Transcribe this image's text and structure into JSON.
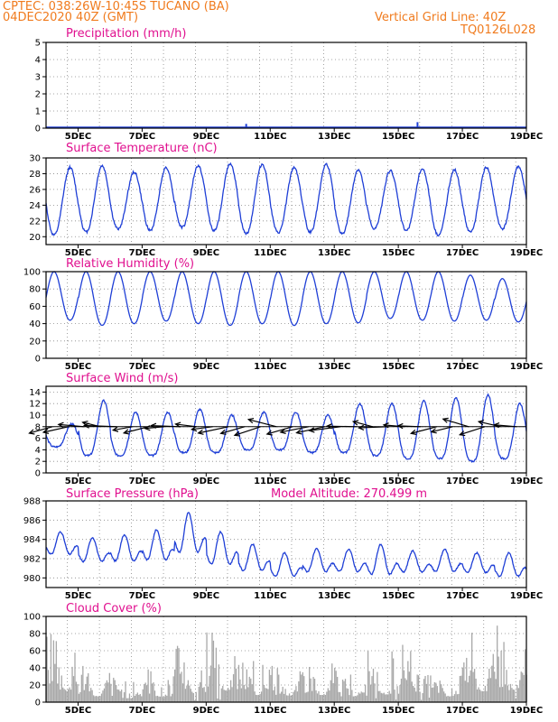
{
  "header": {
    "line1": "CPTEC:   038:26W-10:45S   TUCANO (BA)",
    "line2": "04DEC2020 40Z (GMT)",
    "right1": "Vertical Grid Line: 40Z",
    "right2": "TQ0126L028"
  },
  "colors": {
    "header": "#f07b1e",
    "title": "#e0108f",
    "series": "#1f3fd6",
    "cloud": "#a8a8a8",
    "wind": "#000000"
  },
  "chart_data": [
    {
      "type": "line",
      "title": "Precipitation (mm/h)",
      "ylim": [
        0,
        5
      ],
      "yticks": [
        "0",
        "1",
        "2",
        "3",
        "4",
        "5"
      ],
      "xticks": [
        "5DEC",
        "7DEC",
        "9DEC",
        "11DEC",
        "13DEC",
        "15DEC",
        "17DEC",
        "19DEC"
      ],
      "xrange_days": [
        4.0,
        19.0
      ],
      "spikes": [
        [
          10.25,
          0.25
        ],
        [
          15.6,
          0.35
        ],
        [
          16.9,
          0.05
        ],
        [
          17.7,
          0.08
        ]
      ]
    },
    {
      "type": "line",
      "title": "Surface Temperature (nC)",
      "ylim": [
        19,
        30
      ],
      "yticks": [
        "20",
        "22",
        "24",
        "26",
        "28",
        "30"
      ],
      "xticks": [
        "5DEC",
        "7DEC",
        "9DEC",
        "11DEC",
        "13DEC",
        "15DEC",
        "17DEC",
        "19DEC"
      ],
      "daily_max": [
        28.8,
        29.0,
        28.2,
        28.8,
        29.0,
        29.3,
        29.2,
        28.8,
        29.2,
        28.5,
        28.4,
        28.6,
        28.5,
        28.8,
        28.9
      ],
      "daily_min": [
        20.2,
        20.6,
        21.0,
        20.8,
        21.2,
        20.8,
        20.4,
        20.5,
        20.6,
        20.4,
        21.0,
        20.8,
        20.2,
        20.6,
        21.0
      ]
    },
    {
      "type": "line",
      "title": "Relative Humidity (%)",
      "ylim": [
        0,
        100
      ],
      "yticks": [
        "0",
        "20",
        "40",
        "60",
        "80",
        "100"
      ],
      "xticks": [
        "5DEC",
        "7DEC",
        "9DEC",
        "11DEC",
        "13DEC",
        "15DEC",
        "17DEC",
        "19DEC"
      ],
      "daily_max": [
        100,
        100,
        100,
        100,
        100,
        100,
        100,
        100,
        100,
        100,
        100,
        100,
        100,
        96,
        92
      ],
      "daily_min": [
        44,
        38,
        40,
        43,
        40,
        38,
        40,
        38,
        40,
        41,
        46,
        44,
        43,
        44,
        42
      ]
    },
    {
      "type": "line",
      "title": "Surface Wind (m/s)",
      "ylim": [
        0,
        15
      ],
      "yticks": [
        "0",
        "2",
        "4",
        "6",
        "8",
        "10",
        "12",
        "14"
      ],
      "xticks": [
        "5DEC",
        "7DEC",
        "9DEC",
        "11DEC",
        "13DEC",
        "15DEC",
        "17DEC",
        "19DEC"
      ],
      "daily_max": [
        8.5,
        12.5,
        10.5,
        10.5,
        11.0,
        10.0,
        10.5,
        10.5,
        10.0,
        12.0,
        12.0,
        12.5,
        13.0,
        13.5,
        12.0
      ],
      "daily_min": [
        4.5,
        3.0,
        3.0,
        3.0,
        3.5,
        3.5,
        4.0,
        4.0,
        3.5,
        3.5,
        3.0,
        2.5,
        2.5,
        2.0,
        2.5
      ],
      "barbs": "wind vectors along 8 m/s reference"
    },
    {
      "type": "line",
      "title": "Surface Pressure (hPa)",
      "subtitle": "Model Altitude: 270.499 m",
      "ylim": [
        979,
        988
      ],
      "yticks": [
        "980",
        "982",
        "984",
        "986",
        "988"
      ],
      "xticks": [
        "5DEC",
        "7DEC",
        "9DEC",
        "11DEC",
        "13DEC",
        "15DEC",
        "17DEC",
        "19DEC"
      ],
      "daily_high": [
        984.8,
        984.2,
        984.5,
        985.0,
        986.8,
        984.8,
        983.5,
        982.6,
        983.0,
        983.0,
        983.5,
        982.8,
        983.0,
        982.6,
        982.6
      ],
      "daily_low": [
        981.8,
        981.0,
        981.0,
        981.0,
        981.5,
        980.5,
        980.0,
        979.5,
        980.0,
        980.0,
        979.5,
        980.0,
        980.0,
        980.0,
        979.5
      ]
    },
    {
      "type": "bar",
      "title": "Cloud Cover (%)",
      "ylim": [
        0,
        100
      ],
      "yticks": [
        "0",
        "20",
        "40",
        "60",
        "80",
        "100"
      ],
      "xticks": [
        "5DEC",
        "7DEC",
        "9DEC",
        "11DEC",
        "13DEC",
        "15DEC",
        "17DEC",
        "19DEC"
      ],
      "daily_max": [
        95,
        45,
        30,
        40,
        70,
        90,
        55,
        50,
        55,
        45,
        60,
        70,
        45,
        85,
        95
      ]
    }
  ]
}
